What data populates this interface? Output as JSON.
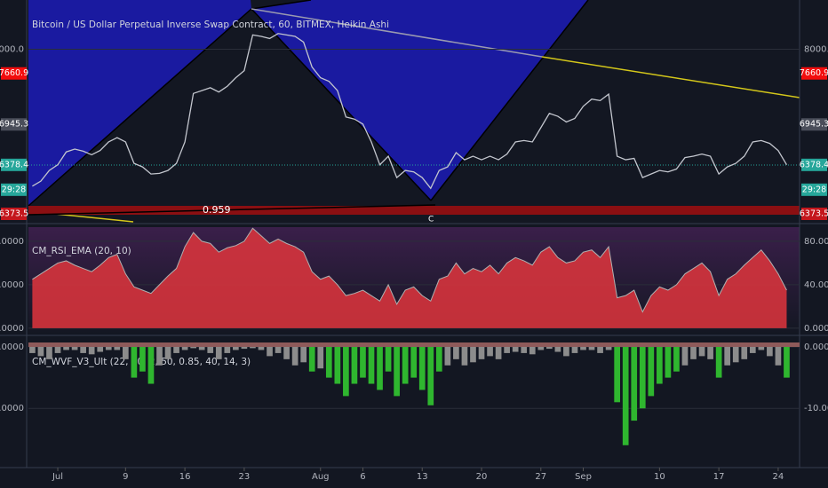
{
  "chart_data": [
    {
      "type": "line",
      "title": "Bitcoin / US Dollar Perpetual Inverse Swap Contract, 60, BITMEX, Heikin Ashi",
      "categories": [
        null,
        null,
        null,
        "Jul",
        null,
        null,
        null,
        null,
        null,
        null,
        null,
        "9",
        null,
        null,
        null,
        null,
        null,
        null,
        "16",
        null,
        null,
        null,
        null,
        null,
        null,
        "23",
        null,
        null,
        null,
        null,
        null,
        null,
        null,
        null,
        "Aug",
        null,
        null,
        null,
        null,
        "6",
        null,
        null,
        null,
        null,
        null,
        null,
        "13",
        null,
        null,
        null,
        null,
        null,
        null,
        "20",
        null,
        null,
        null,
        null,
        null,
        null,
        "27",
        null,
        null,
        null,
        null,
        "Sep",
        null,
        null,
        null,
        null,
        null,
        null,
        null,
        null,
        "10",
        null,
        null,
        null,
        null,
        null,
        null,
        "17",
        null,
        null,
        null,
        null,
        null,
        null,
        "24",
        null
      ],
      "values": [
        6080,
        6150,
        6300,
        6380,
        6560,
        6600,
        6570,
        6520,
        6580,
        6700,
        6760,
        6700,
        6400,
        6350,
        6250,
        6260,
        6300,
        6400,
        6700,
        7380,
        7420,
        7460,
        7400,
        7480,
        7600,
        7700,
        8200,
        8180,
        8150,
        8220,
        8200,
        8180,
        8100,
        7750,
        7600,
        7550,
        7420,
        7050,
        7020,
        6950,
        6700,
        6380,
        6500,
        6200,
        6300,
        6280,
        6200,
        6050,
        6300,
        6350,
        6550,
        6450,
        6500,
        6450,
        6500,
        6450,
        6530,
        6700,
        6720,
        6700,
        6900,
        7100,
        7060,
        6980,
        7030,
        7200,
        7300,
        7280,
        7370,
        6500,
        6450,
        6470,
        6200,
        6250,
        6300,
        6280,
        6320,
        6480,
        6500,
        6530,
        6500,
        6250,
        6350,
        6400,
        6500,
        6700,
        6720,
        6680,
        6580,
        6380
      ],
      "color": "#c3c6ce",
      "ylim": [
        5580,
        8690
      ],
      "yticks": [
        {
          "value": 8000,
          "label": "8000.0"
        }
      ],
      "badges": [
        {
          "value": 7660.9,
          "color": "#f20d0d"
        },
        {
          "value": 6945.3,
          "color": "#4a4e5a"
        },
        {
          "value": 6378.4,
          "color": "#26a69a"
        }
      ],
      "countdown": "29:28",
      "line_label": {
        "value": 6373.5,
        "color": "#c4161c"
      },
      "annotations": [
        "0.959",
        "C"
      ]
    },
    {
      "type": "area",
      "title": "CM_RSI_EMA (20, 10)",
      "values": [
        45,
        50,
        55,
        60,
        62,
        58,
        55,
        52,
        58,
        65,
        68,
        50,
        38,
        35,
        32,
        40,
        48,
        55,
        75,
        88,
        80,
        78,
        70,
        74,
        76,
        80,
        92,
        85,
        78,
        82,
        78,
        75,
        70,
        52,
        45,
        48,
        40,
        30,
        32,
        35,
        30,
        25,
        40,
        22,
        35,
        38,
        30,
        25,
        45,
        48,
        60,
        50,
        55,
        52,
        58,
        50,
        60,
        65,
        62,
        58,
        70,
        75,
        65,
        60,
        62,
        70,
        72,
        65,
        75,
        28,
        30,
        35,
        15,
        30,
        38,
        35,
        40,
        50,
        55,
        60,
        52,
        30,
        45,
        50,
        58,
        65,
        72,
        62,
        50,
        35
      ],
      "color": "#e0353d",
      "line_color": "#b0b0b0",
      "ylim": [
        -5,
        93
      ],
      "yticks": [
        {
          "value": 0,
          "label": "0.0000"
        },
        {
          "value": 40,
          "label": "40.0000"
        },
        {
          "value": 80,
          "label": "80.0000"
        }
      ]
    },
    {
      "type": "bar",
      "title": "CM_WVF_V3_Ult (22, 20, 2, 50, 0.85, 40, 14, 3)",
      "values": [
        -1,
        -1.5,
        -2,
        -1,
        -0.5,
        -0.5,
        -1,
        -1.2,
        -0.8,
        -0.5,
        -0.5,
        -2,
        -5,
        -4,
        -6,
        -3,
        -2,
        -1,
        -0.5,
        -0.2,
        -0.5,
        -1,
        -2,
        -1,
        -0.5,
        -0.3,
        -0.2,
        -0.5,
        -1.5,
        -1,
        -2,
        -3,
        -2.5,
        -4,
        -3.5,
        -5,
        -6,
        -8,
        -6,
        -5,
        -6,
        -7,
        -4,
        -8,
        -6,
        -5,
        -7,
        -9.5,
        -4,
        -3,
        -2,
        -3,
        -2.5,
        -2,
        -1.5,
        -2,
        -1,
        -0.8,
        -1,
        -1.2,
        -0.5,
        -0.3,
        -0.8,
        -1.5,
        -1,
        -0.5,
        -0.5,
        -1,
        -0.5,
        -9,
        -16,
        -12,
        -10,
        -8,
        -6,
        -5,
        -4,
        -3,
        -2,
        -1.5,
        -2,
        -5,
        -3,
        -2.5,
        -2,
        -1,
        -0.5,
        -1.5,
        -3,
        -5
      ],
      "colors": [
        "#8c8c8c",
        "#8c8c8c",
        "#8c8c8c",
        "#8c8c8c",
        "#8c8c8c",
        "#8c8c8c",
        "#8c8c8c",
        "#8c8c8c",
        "#8c8c8c",
        "#8c8c8c",
        "#8c8c8c",
        "#8c8c8c",
        "#2fb62f",
        "#2fb62f",
        "#2fb62f",
        "#8c8c8c",
        "#8c8c8c",
        "#8c8c8c",
        "#8c8c8c",
        "#8c8c8c",
        "#8c8c8c",
        "#8c8c8c",
        "#8c8c8c",
        "#8c8c8c",
        "#8c8c8c",
        "#8c8c8c",
        "#8c8c8c",
        "#8c8c8c",
        "#8c8c8c",
        "#8c8c8c",
        "#8c8c8c",
        "#8c8c8c",
        "#8c8c8c",
        "#2fb62f",
        "#8c8c8c",
        "#2fb62f",
        "#2fb62f",
        "#2fb62f",
        "#2fb62f",
        "#2fb62f",
        "#2fb62f",
        "#2fb62f",
        "#2fb62f",
        "#2fb62f",
        "#2fb62f",
        "#2fb62f",
        "#2fb62f",
        "#2fb62f",
        "#2fb62f",
        "#8c8c8c",
        "#8c8c8c",
        "#8c8c8c",
        "#8c8c8c",
        "#8c8c8c",
        "#8c8c8c",
        "#8c8c8c",
        "#8c8c8c",
        "#8c8c8c",
        "#8c8c8c",
        "#8c8c8c",
        "#8c8c8c",
        "#8c8c8c",
        "#8c8c8c",
        "#8c8c8c",
        "#8c8c8c",
        "#8c8c8c",
        "#8c8c8c",
        "#8c8c8c",
        "#8c8c8c",
        "#2fb62f",
        "#2fb62f",
        "#2fb62f",
        "#2fb62f",
        "#2fb62f",
        "#2fb62f",
        "#2fb62f",
        "#2fb62f",
        "#8c8c8c",
        "#8c8c8c",
        "#8c8c8c",
        "#8c8c8c",
        "#2fb62f",
        "#8c8c8c",
        "#8c8c8c",
        "#8c8c8c",
        "#8c8c8c",
        "#8c8c8c",
        "#8c8c8c",
        "#8c8c8c",
        "#2fb62f"
      ],
      "ylim": [
        -19.5,
        1.3
      ],
      "yticks": [
        {
          "value": 0,
          "label": "0.0000"
        },
        {
          "value": -10,
          "label": "-10.0000"
        }
      ]
    }
  ]
}
